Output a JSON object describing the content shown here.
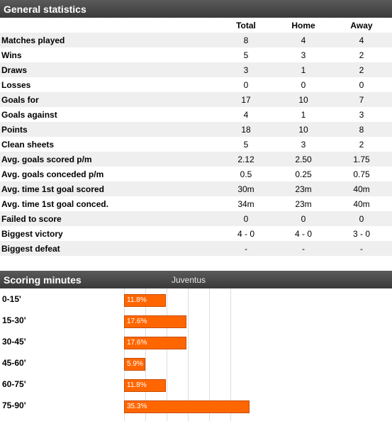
{
  "general": {
    "title": "General statistics",
    "columns": [
      "",
      "Total",
      "Home",
      "Away"
    ],
    "rows": [
      {
        "label": "Matches played",
        "total": "8",
        "home": "4",
        "away": "4"
      },
      {
        "label": "Wins",
        "total": "5",
        "home": "3",
        "away": "2"
      },
      {
        "label": "Draws",
        "total": "3",
        "home": "1",
        "away": "2"
      },
      {
        "label": "Losses",
        "total": "0",
        "home": "0",
        "away": "0"
      },
      {
        "label": "Goals for",
        "total": "17",
        "home": "10",
        "away": "7"
      },
      {
        "label": "Goals against",
        "total": "4",
        "home": "1",
        "away": "3"
      },
      {
        "label": "Points",
        "total": "18",
        "home": "10",
        "away": "8"
      },
      {
        "label": "Clean sheets",
        "total": "5",
        "home": "3",
        "away": "2"
      },
      {
        "label": "Avg. goals scored p/m",
        "total": "2.12",
        "home": "2.50",
        "away": "1.75"
      },
      {
        "label": "Avg. goals conceded p/m",
        "total": "0.5",
        "home": "0.25",
        "away": "0.75"
      },
      {
        "label": "Avg. time 1st goal scored",
        "total": "30m",
        "home": "23m",
        "away": "40m"
      },
      {
        "label": "Avg. time 1st goal conced.",
        "total": "34m",
        "home": "23m",
        "away": "40m"
      },
      {
        "label": "Failed to score",
        "total": "0",
        "home": "0",
        "away": "0"
      },
      {
        "label": "Biggest victory",
        "total": "4 - 0",
        "home": "4 - 0",
        "away": "3 - 0"
      },
      {
        "label": "Biggest defeat",
        "total": "-",
        "home": "-",
        "away": "-"
      }
    ]
  },
  "scoring": {
    "title": "Scoring minutes",
    "team": "Juventus",
    "bar_color": "#ff6600"
  },
  "chart_data": {
    "type": "bar",
    "orientation": "horizontal",
    "title": "Scoring minutes",
    "categories": [
      "0-15'",
      "15-30'",
      "30-45'",
      "45-60'",
      "60-75'",
      "75-90'"
    ],
    "values": [
      11.8,
      17.6,
      17.6,
      5.9,
      11.8,
      35.3
    ],
    "value_labels": [
      "11.8%",
      "17.6%",
      "17.6%",
      "5.9%",
      "11.8%",
      "35.3%"
    ],
    "xlim": [
      0,
      100
    ],
    "grid": true
  }
}
